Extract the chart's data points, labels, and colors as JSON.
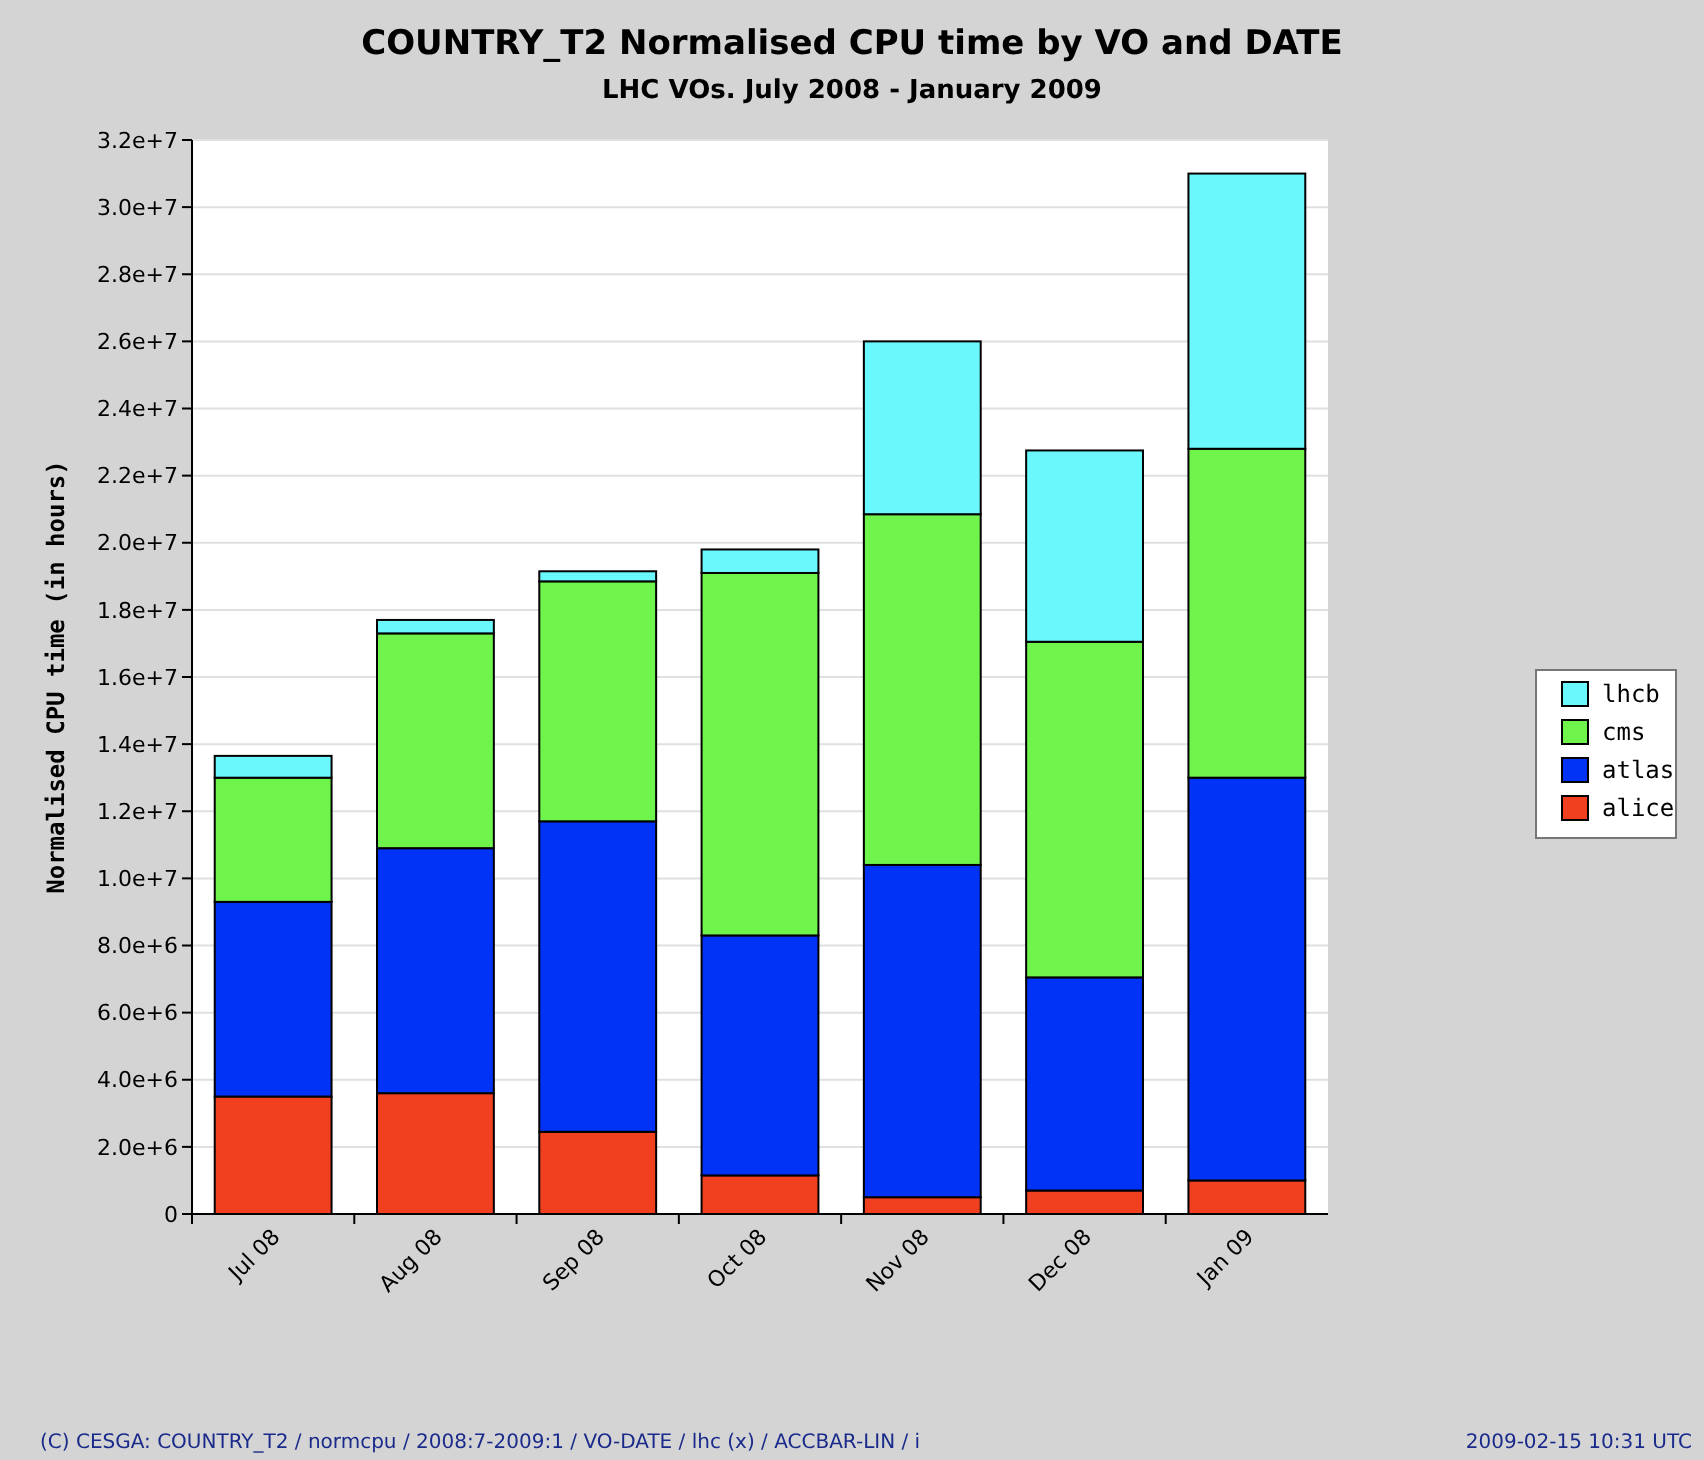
{
  "chart_data": {
    "type": "bar",
    "title": "COUNTRY_T2 Normalised CPU time by VO and DATE",
    "subtitle": "LHC VOs. July 2008 - January 2009",
    "ylabel": "Normalised CPU time (in hours)",
    "categories": [
      "Jul 08",
      "Aug 08",
      "Sep 08",
      "Oct 08",
      "Nov 08",
      "Dec 08",
      "Jan 09"
    ],
    "stacked": true,
    "series": [
      {
        "name": "alice",
        "color": "#f04020",
        "values": [
          3500000,
          3600000,
          2450000,
          1150000,
          500000,
          700000,
          1000000
        ]
      },
      {
        "name": "atlas",
        "color": "#0033f5",
        "values": [
          5800000,
          7300000,
          9250000,
          7150000,
          9900000,
          6350000,
          12000000
        ]
      },
      {
        "name": "cms",
        "color": "#6ef44a",
        "values": [
          3700000,
          6400000,
          7150000,
          10800000,
          10450000,
          10000000,
          9800000
        ]
      },
      {
        "name": "lhcb",
        "color": "#6af8fc",
        "values": [
          650000,
          400000,
          300000,
          700000,
          5150000,
          5700000,
          8200000
        ]
      }
    ],
    "ylim": [
      0,
      32000000
    ],
    "yticks": [
      0,
      {
        "value": 2000000,
        "label": "2.0e+6"
      },
      {
        "value": 4000000,
        "label": "4.0e+6"
      },
      {
        "value": 6000000,
        "label": "6.0e+6"
      },
      {
        "value": 8000000,
        "label": "8.0e+6"
      },
      {
        "value": 10000000,
        "label": "1.0e+7"
      },
      {
        "value": 12000000,
        "label": "1.2e+7"
      },
      {
        "value": 14000000,
        "label": "1.4e+7"
      },
      {
        "value": 16000000,
        "label": "1.6e+7"
      },
      {
        "value": 18000000,
        "label": "1.8e+7"
      },
      {
        "value": 20000000,
        "label": "2.0e+7"
      },
      {
        "value": 22000000,
        "label": "2.2e+7"
      },
      {
        "value": 24000000,
        "label": "2.4e+7"
      },
      {
        "value": 26000000,
        "label": "2.6e+7"
      },
      {
        "value": 28000000,
        "label": "2.8e+7"
      },
      {
        "value": 30000000,
        "label": "3.0e+7"
      },
      {
        "value": 32000000,
        "label": "3.2e+7"
      }
    ],
    "grid": "y",
    "legend": "right",
    "annotations": [
      "(C) CESGA: COUNTRY_T2 / normcpu / 2008:7-2009:1 / VO-DATE / lhc (x) / ACCBAR-LIN / i",
      "2009-02-15 10:31 UTC"
    ]
  }
}
